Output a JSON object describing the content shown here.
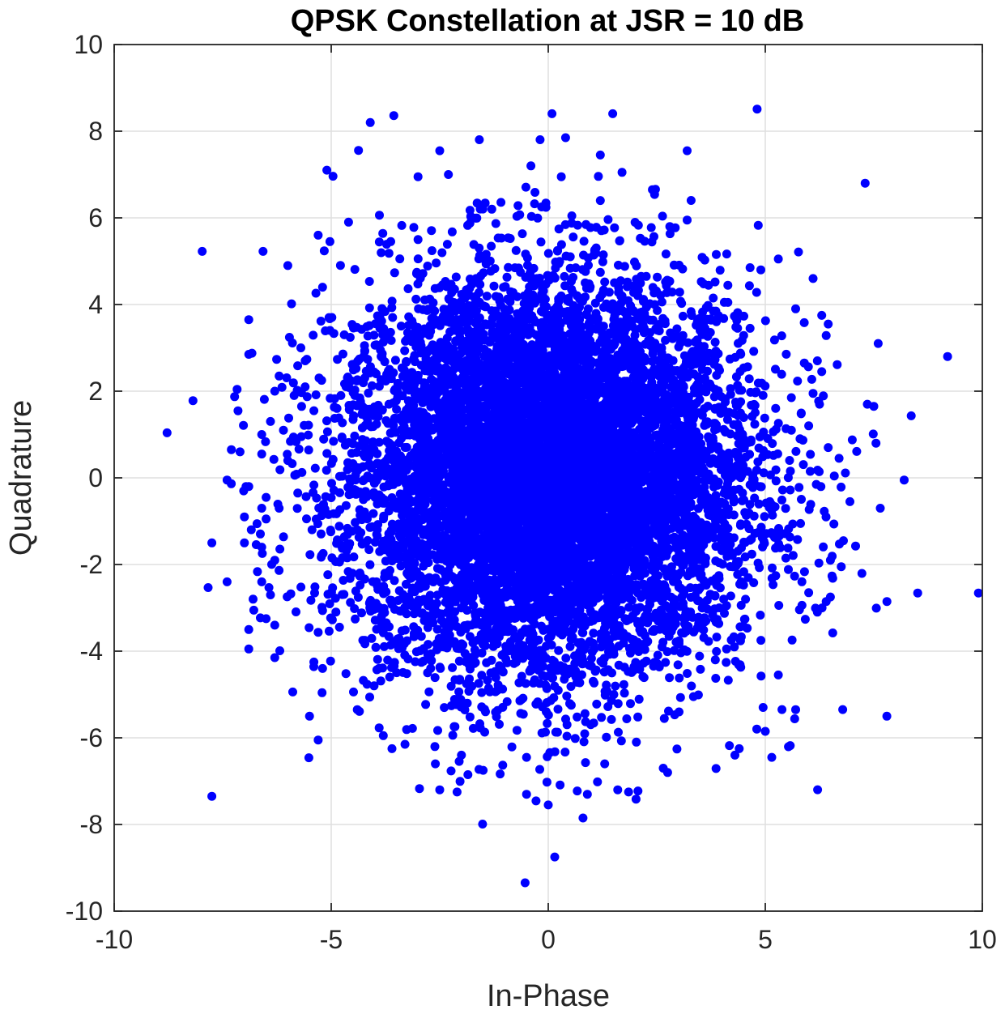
{
  "chart_data": {
    "type": "scatter",
    "title": "QPSK Constellation at JSR = 10 dB",
    "xlabel": "In-Phase",
    "ylabel": "Quadrature",
    "xlim": [
      -10,
      10
    ],
    "ylim": [
      -10,
      10
    ],
    "xticks": [
      -10,
      -5,
      0,
      5,
      10
    ],
    "yticks": [
      -10,
      -8,
      -6,
      -4,
      -2,
      0,
      2,
      4,
      6,
      8,
      10
    ],
    "xtick_labels": [
      "-10",
      "-5",
      "0",
      "5",
      "10"
    ],
    "ytick_labels": [
      "-10",
      "-8",
      "-6",
      "-4",
      "-2",
      "0",
      "2",
      "4",
      "6",
      "8",
      "10"
    ],
    "grid": true,
    "marker_color": "#0000ff",
    "series": [
      {
        "points": [
          [
            -4.1,
            8.2
          ],
          [
            0.4,
            7.85
          ],
          [
            -2.5,
            7.55
          ],
          [
            3.2,
            7.55
          ],
          [
            1.2,
            7.45
          ],
          [
            -5.1,
            7.1
          ],
          [
            -0.4,
            7.2
          ],
          [
            1.7,
            7.05
          ],
          [
            7.3,
            6.8
          ],
          [
            -3.0,
            6.95
          ],
          [
            -2.3,
            7.0
          ],
          [
            0.3,
            6.95
          ],
          [
            2.4,
            6.65
          ],
          [
            1.2,
            6.4
          ],
          [
            -1.3,
            6.2
          ],
          [
            -4.6,
            5.9
          ],
          [
            3.2,
            5.95
          ],
          [
            5.3,
            5.05
          ],
          [
            -6.0,
            4.9
          ],
          [
            -5.3,
            5.6
          ],
          [
            2.8,
            5.8
          ],
          [
            -3.0,
            5.5
          ],
          [
            4.65,
            4.85
          ],
          [
            6.1,
            4.6
          ],
          [
            -5.2,
            4.4
          ],
          [
            3.8,
            4.15
          ],
          [
            5.7,
            3.9
          ],
          [
            6.3,
            3.75
          ],
          [
            -6.9,
            3.65
          ],
          [
            -5.05,
            3.7
          ],
          [
            6.45,
            3.55
          ],
          [
            -4.7,
            3.3
          ],
          [
            -5.7,
            3.0
          ],
          [
            -6.9,
            2.85
          ],
          [
            7.6,
            3.1
          ],
          [
            9.2,
            2.8
          ],
          [
            -5.6,
            2.7
          ],
          [
            5.9,
            2.65
          ],
          [
            6.2,
            2.7
          ],
          [
            6.3,
            2.45
          ],
          [
            -6.2,
            2.35
          ],
          [
            -5.6,
            2.1
          ],
          [
            6.1,
            1.95
          ],
          [
            -6.3,
            2.0
          ],
          [
            5.6,
            1.85
          ],
          [
            7.35,
            1.7
          ],
          [
            7.5,
            1.65
          ],
          [
            -5.4,
            1.55
          ],
          [
            6.25,
            1.7
          ],
          [
            -6.4,
            1.3
          ],
          [
            -6.1,
            1.1
          ],
          [
            -6.6,
            1.0
          ],
          [
            5.6,
            1.1
          ],
          [
            6.0,
            1.2
          ],
          [
            -7.3,
            0.65
          ],
          [
            -7.1,
            0.6
          ],
          [
            -6.6,
            0.55
          ],
          [
            -6.0,
            0.4
          ],
          [
            7.55,
            0.8
          ],
          [
            6.45,
            0.7
          ],
          [
            6.7,
            0.45
          ],
          [
            5.8,
            0.9
          ],
          [
            -7.4,
            -0.05
          ],
          [
            -6.9,
            -0.2
          ],
          [
            8.2,
            -0.05
          ],
          [
            -6.5,
            -0.45
          ],
          [
            -6.2,
            -0.7
          ],
          [
            -6.6,
            -0.7
          ],
          [
            6.95,
            -0.55
          ],
          [
            7.65,
            -0.7
          ],
          [
            -7.0,
            -0.9
          ],
          [
            -6.5,
            -0.95
          ],
          [
            6.4,
            -0.9
          ],
          [
            -7.75,
            -1.5
          ],
          [
            -7.0,
            -1.5
          ],
          [
            -6.6,
            -1.6
          ],
          [
            -6.3,
            -1.9
          ],
          [
            6.8,
            -1.45
          ],
          [
            6.5,
            -1.9
          ],
          [
            6.75,
            -2.05
          ],
          [
            -7.4,
            -2.4
          ],
          [
            -6.6,
            -2.4
          ],
          [
            -6.8,
            -2.8
          ],
          [
            6.0,
            -2.65
          ],
          [
            6.5,
            -2.75
          ],
          [
            -6.3,
            -3.4
          ],
          [
            -6.4,
            -2.7
          ],
          [
            6.2,
            -3.1
          ],
          [
            -6.9,
            -3.5
          ],
          [
            -6.5,
            -3.25
          ],
          [
            -6.9,
            -3.95
          ],
          [
            -6.3,
            -4.15
          ],
          [
            4.9,
            -3.75
          ],
          [
            -5.4,
            -4.25
          ],
          [
            -5.2,
            -4.4
          ],
          [
            5.3,
            -4.55
          ],
          [
            -5.5,
            -5.5
          ],
          [
            -5.3,
            -6.05
          ],
          [
            5.7,
            -5.35
          ],
          [
            4.95,
            -5.3
          ],
          [
            5.0,
            -5.85
          ],
          [
            -4.4,
            -5.35
          ],
          [
            -3.8,
            -5.95
          ],
          [
            -3.6,
            -6.25
          ],
          [
            -3.3,
            -6.15
          ],
          [
            5.15,
            -6.45
          ],
          [
            4.3,
            -6.4
          ],
          [
            4.4,
            -6.25
          ],
          [
            -2.5,
            -7.2
          ],
          [
            -2.6,
            -6.6
          ],
          [
            7.8,
            -5.5
          ],
          [
            -7.75,
            -7.35
          ],
          [
            0.0,
            -7.55
          ],
          [
            0.8,
            -7.85
          ],
          [
            0.15,
            -8.75
          ],
          [
            1.6,
            -7.2
          ],
          [
            1.85,
            -7.25
          ],
          [
            2.65,
            -6.7
          ],
          [
            2.75,
            -6.8
          ],
          [
            -2.1,
            -7.25
          ],
          [
            1.3,
            -6.6
          ],
          [
            -1.5,
            -6.75
          ],
          [
            -1.85,
            -6.85
          ],
          [
            -0.5,
            -6.45
          ],
          [
            -2.0,
            -6.4
          ]
        ],
        "core_cloud": {
          "description_points": [
            [
              -4.5,
              2.5
            ],
            [
              -4.0,
              3.5
            ],
            [
              -3.0,
              4.5
            ],
            [
              -1.5,
              5.5
            ],
            [
              0.0,
              5.8
            ],
            [
              1.5,
              5.5
            ],
            [
              3.0,
              4.5
            ],
            [
              4.0,
              3.5
            ],
            [
              4.5,
              2.5
            ],
            [
              5.0,
              1.0
            ],
            [
              5.2,
              0.0
            ],
            [
              5.0,
              -1.5
            ],
            [
              4.5,
              -3.0
            ],
            [
              3.5,
              -4.5
            ],
            [
              2.0,
              -5.5
            ],
            [
              0.5,
              -5.8
            ],
            [
              -1.0,
              -5.8
            ],
            [
              -2.5,
              -5.3
            ],
            [
              -3.5,
              -4.5
            ],
            [
              -4.5,
              -3.5
            ],
            [
              -5.0,
              -2.0
            ],
            [
              -5.2,
              -0.5
            ],
            [
              -5.0,
              1.0
            ]
          ]
        }
      }
    ]
  }
}
